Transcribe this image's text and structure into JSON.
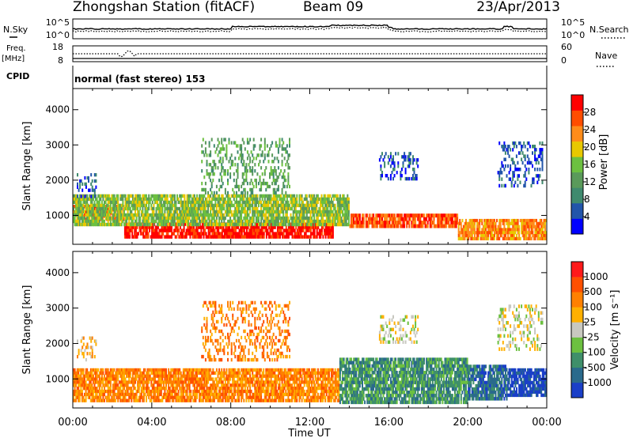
{
  "header": {
    "station": "Zhongshan Station (fitACF)",
    "beam": "Beam 09",
    "date": "23/Apr/2013"
  },
  "top_panels": {
    "nsky_label": "N.Sky",
    "nsearch_label": "N.Search",
    "left_ticks": [
      "10^5",
      "10^0"
    ],
    "right_ticks": [
      "10^5",
      "10^0"
    ],
    "freq_label": "Freq.",
    "freq_unit": "[MHz]",
    "freq_ticks": [
      "18",
      "8"
    ],
    "nave_label": "Nave",
    "nave_ticks": [
      "60",
      "0"
    ],
    "cpid_label": "CPID",
    "cpid_text": "normal (fast stereo) 153"
  },
  "colors": {
    "power": [
      "#0000ff",
      "#2255aa",
      "#3f8a6e",
      "#5a9a5a",
      "#6cc040",
      "#e8c800",
      "#ff8c1a",
      "#ff4d00",
      "#ff0000"
    ],
    "velocity": [
      "#1a3fc8",
      "#2a6a8c",
      "#3f8f6a",
      "#6cc040",
      "#c8c8c0",
      "#ffb000",
      "#ff8000",
      "#ff5000",
      "#ff1a1a"
    ]
  },
  "chart_data": [
    {
      "type": "heatmap",
      "name": "power",
      "ylabel": "Slant Range [km]",
      "ylim": [
        180,
        4600
      ],
      "y_ticks": [
        "4000",
        "3000",
        "2000",
        "1000"
      ],
      "x_ticks": [
        "00:00",
        "04:00",
        "08:00",
        "12:00",
        "16:00",
        "20:00",
        "00:00"
      ],
      "colorbar": {
        "label": "Power [dB]",
        "ticks": [
          "28",
          "24",
          "20",
          "16",
          "12",
          "8",
          "4"
        ]
      },
      "bands": [
        {
          "t0": 0.0,
          "t1": 2.6,
          "r0": 850,
          "r1": 1300,
          "level": 7
        },
        {
          "t0": 2.6,
          "t1": 13.2,
          "r0": 350,
          "r1": 800,
          "level": 8
        },
        {
          "t0": 0.0,
          "t1": 14.0,
          "r0": 700,
          "r1": 1600,
          "level": 4
        },
        {
          "t0": 14.0,
          "t1": 19.5,
          "r0": 650,
          "r1": 1050,
          "level": 7
        },
        {
          "t0": 19.5,
          "t1": 24.0,
          "r0": 300,
          "r1": 900,
          "level": 6
        }
      ],
      "weak_echoes": [
        {
          "t0": 15.5,
          "t1": 17.5,
          "r0": 2000,
          "r1": 2800,
          "level": 1
        },
        {
          "t0": 21.5,
          "t1": 23.8,
          "r0": 1800,
          "r1": 3100,
          "level": 1
        },
        {
          "t0": 6.5,
          "t1": 11.0,
          "r0": 1600,
          "r1": 3200,
          "level": 3
        },
        {
          "t0": 0.2,
          "t1": 1.2,
          "r0": 1500,
          "r1": 2200,
          "level": 1
        }
      ]
    },
    {
      "type": "heatmap",
      "name": "velocity",
      "ylabel": "Slant Range [km]",
      "xlabel": "Time UT",
      "ylim": [
        180,
        4600
      ],
      "y_ticks": [
        "4000",
        "3000",
        "2000",
        "1000"
      ],
      "x_ticks": [
        "00:00",
        "04:00",
        "08:00",
        "12:00",
        "16:00",
        "20:00",
        "00:00"
      ],
      "colorbar": {
        "label": "Velocity [m s⁻¹]",
        "ticks": [
          "1000",
          "500",
          "100",
          "25",
          "-25",
          "-100",
          "-500",
          "-1000"
        ]
      },
      "bands": [
        {
          "t0": 0.0,
          "t1": 13.5,
          "r0": 350,
          "r1": 1300,
          "level": 6
        },
        {
          "t0": 13.5,
          "t1": 20.0,
          "r0": 300,
          "r1": 1600,
          "level": 2
        },
        {
          "t0": 20.0,
          "t1": 22.0,
          "r0": 400,
          "r1": 1400,
          "level": 1
        },
        {
          "t0": 22.0,
          "t1": 24.0,
          "r0": 500,
          "r1": 1300,
          "level": 0
        }
      ],
      "weak_echoes": [
        {
          "t0": 15.5,
          "t1": 17.5,
          "r0": 2000,
          "r1": 2800,
          "level": 4
        },
        {
          "t0": 21.5,
          "t1": 23.8,
          "r0": 1800,
          "r1": 3100,
          "level": 4
        },
        {
          "t0": 6.5,
          "t1": 11.0,
          "r0": 1500,
          "r1": 3200,
          "level": 6
        },
        {
          "t0": 0.2,
          "t1": 1.2,
          "r0": 1500,
          "r1": 2200,
          "level": 5
        }
      ]
    }
  ]
}
